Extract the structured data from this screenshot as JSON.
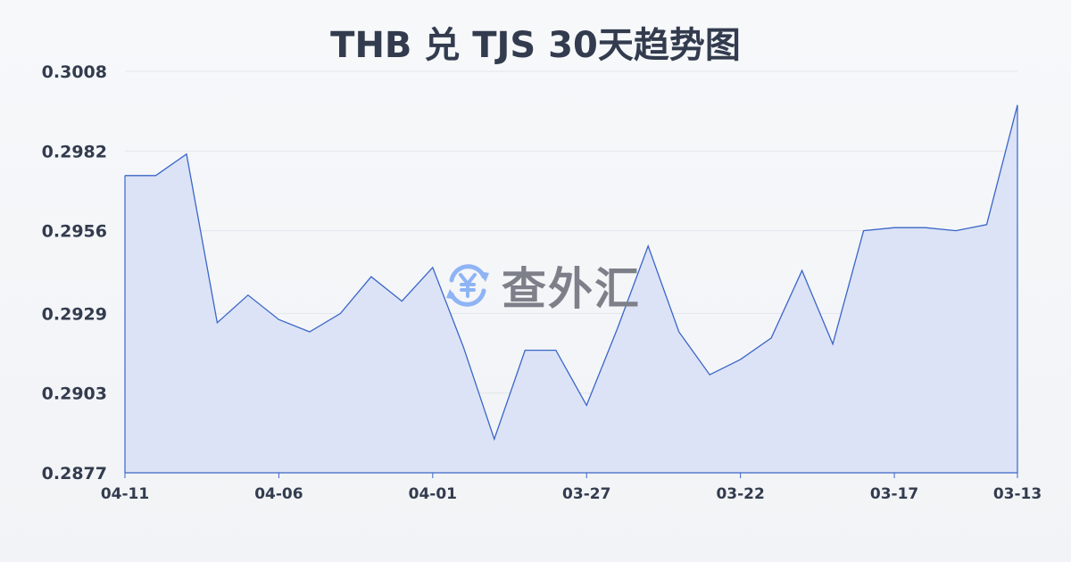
{
  "chart_data": {
    "type": "area",
    "title": "THB 兑 TJS 30天趋势图",
    "xlabel": "",
    "ylabel": "",
    "x_tick_labels": [
      "04-11",
      "04-06",
      "04-01",
      "03-27",
      "03-22",
      "03-17",
      "03-13"
    ],
    "y_tick_labels": [
      "0.3008",
      "0.2982",
      "0.2956",
      "0.2929",
      "0.2903",
      "0.2877"
    ],
    "ylim": [
      0.2877,
      0.3008
    ],
    "x_order": "reverse-chronological (04-11 on left to 03-13 on right)",
    "grid": true,
    "values": [
      0.2974,
      0.2974,
      0.2981,
      0.2926,
      0.2935,
      0.2927,
      0.2923,
      0.2929,
      0.2941,
      0.2933,
      0.2944,
      0.2918,
      0.2888,
      0.2917,
      0.2917,
      0.2899,
      0.2924,
      0.2951,
      0.2923,
      0.2909,
      0.2914,
      0.2921,
      0.2943,
      0.2919,
      0.2956,
      0.2957,
      0.2957,
      0.2956,
      0.2958,
      0.2997
    ],
    "colors": {
      "line": "#3a66c8",
      "fill": "#dae2f5",
      "grid": "#e3e6eb"
    }
  },
  "watermark": {
    "text": "查外汇",
    "icon": "yen-exchange-icon",
    "icon_color": "#8fb4f5"
  }
}
